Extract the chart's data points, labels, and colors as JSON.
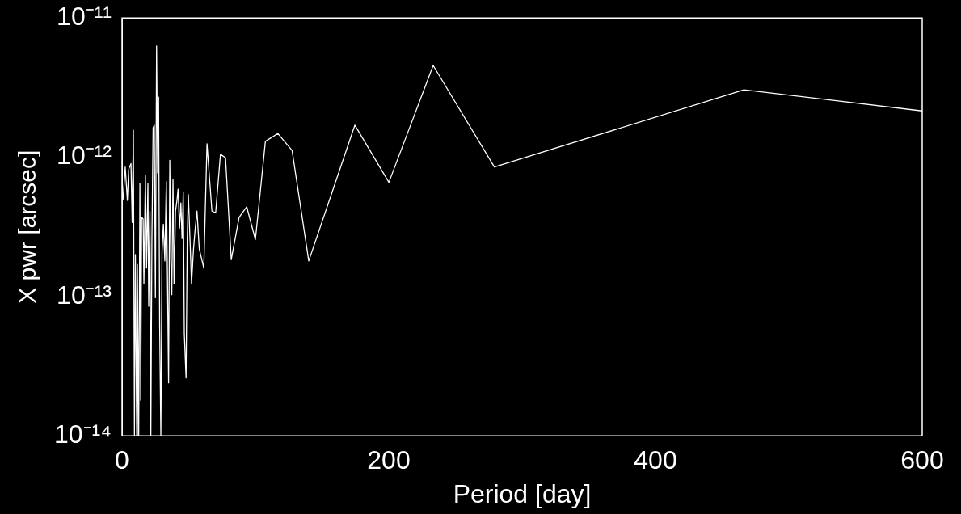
{
  "chart_data": {
    "type": "line",
    "xlabel": "Period [day]",
    "ylabel": "X pwr [arcsec]",
    "log": "y",
    "grid": false,
    "legend": false,
    "marker": "none",
    "line_style": "solid",
    "xlim": [
      0,
      600
    ],
    "xticks": [
      0,
      200,
      400,
      600
    ],
    "ylim": [
      1e-14,
      1e-11
    ],
    "yticks": [
      {
        "value": 1e-14,
        "label": "10⁻¹⁴"
      },
      {
        "value": 1e-13,
        "label": "10⁻¹³"
      },
      {
        "value": 1e-12,
        "label": "10⁻¹²"
      },
      {
        "value": 1e-11,
        "label": "10⁻¹¹"
      }
    ],
    "series": [
      {
        "color": "#ffffff",
        "x": [
          0.7,
          2.4,
          4,
          5,
          6.7,
          7.6,
          8.5,
          9.3,
          10,
          11,
          11.5,
          12.5,
          13.4,
          14,
          14.7,
          15.8,
          16.4,
          17.5,
          18.4,
          19.4,
          20,
          20.9,
          21.6,
          22.4,
          23.3,
          24.2,
          25,
          25.9,
          26.7,
          27.4,
          28.2,
          29.1,
          30,
          31,
          32.1,
          33.2,
          34,
          34.9,
          35.8,
          36.6,
          37.3,
          38.2,
          39,
          40.1,
          41.2,
          42,
          43.1,
          44.1,
          45,
          45.9,
          46.7,
          48,
          48.9,
          49.7,
          51,
          52.1,
          53.6,
          54.9,
          56.2,
          57.9,
          61.3,
          63.7,
          67.4,
          70.2,
          73.8,
          77.6,
          81.9,
          87.8,
          93.5,
          100,
          107.5,
          116.8,
          127.5,
          140,
          174.6,
          200.1,
          233.3,
          279.2,
          466.3,
          600
        ],
        "values": [
          4.9e-13,
          8.5e-13,
          4.9e-13,
          8.2e-13,
          9e-13,
          3.4e-13,
          1.56e-12,
          1e-14,
          2e-13,
          1e-14,
          1.7e-13,
          1e-14,
          6.5e-13,
          1.8e-14,
          3.7e-13,
          3.6e-13,
          1.23e-13,
          7.4e-13,
          1.6e-13,
          6.5e-13,
          8.5e-14,
          4.1e-13,
          1e-14,
          2.6e-13,
          1.63e-12,
          1.7e-12,
          9.8e-14,
          6.3e-12,
          7.7e-13,
          2.7e-12,
          6.5e-14,
          1e-14,
          2.1e-13,
          3.3e-13,
          1.8e-13,
          6.7e-13,
          1.55e-13,
          2.4e-14,
          9.5e-13,
          1.8e-13,
          1.03e-13,
          6.9e-13,
          1.23e-13,
          4.1e-13,
          4.9e-13,
          5.9e-13,
          3.1e-13,
          4.7e-13,
          2.6e-13,
          5.6e-13,
          5.4e-14,
          2.6e-14,
          2.6e-13,
          5.4e-13,
          2.5e-13,
          1.23e-13,
          2.2e-13,
          3.1e-13,
          4.1e-13,
          2.2e-13,
          1.6e-13,
          1.25e-12,
          4.1e-13,
          4e-13,
          1.05e-12,
          9.9e-13,
          1.84e-13,
          3.7e-13,
          4.4e-13,
          2.56e-13,
          1.3e-12,
          1.48e-12,
          1.12e-12,
          1.8e-13,
          1.7e-12,
          6.6e-13,
          4.56e-12,
          8.5e-13,
          3.05e-12,
          2.15e-12
        ]
      }
    ]
  }
}
